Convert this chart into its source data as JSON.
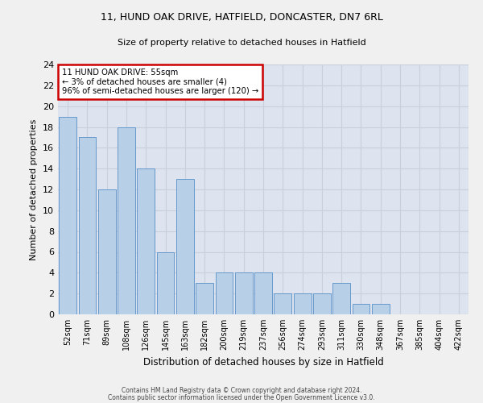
{
  "title1": "11, HUND OAK DRIVE, HATFIELD, DONCASTER, DN7 6RL",
  "title2": "Size of property relative to detached houses in Hatfield",
  "xlabel": "Distribution of detached houses by size in Hatfield",
  "ylabel": "Number of detached properties",
  "categories": [
    "52sqm",
    "71sqm",
    "89sqm",
    "108sqm",
    "126sqm",
    "145sqm",
    "163sqm",
    "182sqm",
    "200sqm",
    "219sqm",
    "237sqm",
    "256sqm",
    "274sqm",
    "293sqm",
    "311sqm",
    "330sqm",
    "348sqm",
    "367sqm",
    "385sqm",
    "404sqm",
    "422sqm"
  ],
  "values": [
    19,
    17,
    12,
    18,
    14,
    6,
    13,
    3,
    4,
    4,
    4,
    2,
    2,
    2,
    3,
    1,
    1,
    0,
    0,
    0,
    0
  ],
  "bar_color": "#b8cfe8",
  "bar_edge_color": "#6699cc",
  "ylim": [
    0,
    24
  ],
  "yticks": [
    0,
    2,
    4,
    6,
    8,
    10,
    12,
    14,
    16,
    18,
    20,
    22,
    24
  ],
  "annotation_text": "11 HUND OAK DRIVE: 55sqm\n← 3% of detached houses are smaller (4)\n96% of semi-detached houses are larger (120) →",
  "footer1": "Contains HM Land Registry data © Crown copyright and database right 2024.",
  "footer2": "Contains public sector information licensed under the Open Government Licence v3.0.",
  "annotation_box_color": "#ffffff",
  "annotation_box_edge_color": "#cc0000",
  "grid_color": "#c8d0dc",
  "background_color": "#dde4f0",
  "fig_facecolor": "#f0f0f0"
}
